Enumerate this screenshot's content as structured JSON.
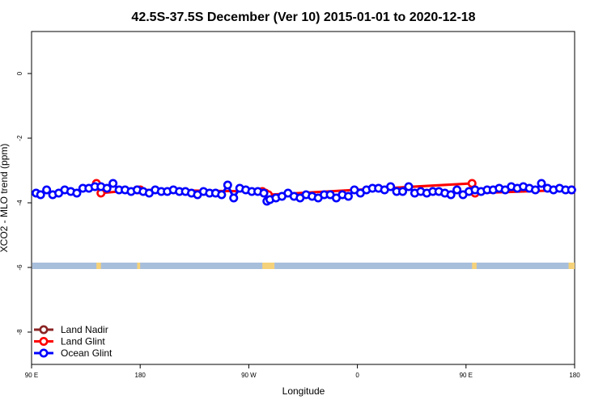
{
  "chart_data": {
    "type": "line",
    "title": "42.5S-37.5S December (Ver 10)   2015-01-01 to 2020-12-18",
    "xlabel": "Longitude",
    "ylabel": "XCO2 - MLO trend (ppm)",
    "xlim": [
      -90,
      270
    ],
    "ylim": [
      -9,
      1.3
    ],
    "x_ticks": [
      {
        "value": -90,
        "label": "90 E"
      },
      {
        "value": -18,
        "label": "180"
      },
      {
        "value": 54,
        "label": "90 W"
      },
      {
        "value": 126,
        "label": "0"
      },
      {
        "value": 198,
        "label": "90 E"
      },
      {
        "value": 270,
        "label": "180"
      }
    ],
    "y_ticks": [
      0,
      -2,
      -4,
      -6,
      -8
    ],
    "grid": false,
    "legend_position": "bottom-left",
    "land_mask": {
      "y_range": [
        -5.85,
        -6.05
      ],
      "ocean_color": "#a8bfdc",
      "land_color": "#f5d27a",
      "land_segments": [
        [
          -47,
          -44
        ],
        [
          -20,
          -18
        ],
        [
          63,
          71
        ],
        [
          202,
          205
        ],
        [
          266,
          270
        ]
      ]
    },
    "series": [
      {
        "name": "Land Nadir",
        "color": "#8b2323",
        "x": [],
        "y": []
      },
      {
        "name": "Land Glint",
        "color": "#ff0000",
        "x": [
          -47,
          -44,
          -20,
          -18,
          63,
          65,
          67,
          202,
          204,
          268
        ],
        "y": [
          -3.4,
          -3.7,
          -3.6,
          -3.6,
          -3.65,
          -3.7,
          -3.75,
          -3.4,
          -3.7,
          -3.6
        ]
      },
      {
        "name": "Ocean Glint",
        "color": "#0000ff",
        "x": [
          -87,
          -84,
          -80,
          -76,
          -72,
          -68,
          -64,
          -60,
          -56,
          -52,
          -48,
          -44,
          -40,
          -36,
          -32,
          -28,
          -24,
          -20,
          -16,
          -12,
          -8,
          -4,
          0,
          4,
          8,
          12,
          16,
          20,
          24,
          28,
          32,
          36,
          40,
          44,
          48,
          52,
          56,
          60,
          64,
          66,
          68,
          72,
          76,
          80,
          84,
          88,
          92,
          96,
          100,
          104,
          108,
          112,
          116,
          120,
          124,
          128,
          132,
          136,
          140,
          144,
          148,
          152,
          156,
          160,
          164,
          168,
          172,
          176,
          180,
          184,
          188,
          192,
          196,
          200,
          204,
          208,
          212,
          216,
          220,
          224,
          228,
          232,
          236,
          240,
          244,
          248,
          252,
          256,
          260,
          264,
          268
        ],
        "y": [
          -3.7,
          -3.75,
          -3.6,
          -3.75,
          -3.7,
          -3.6,
          -3.65,
          -3.7,
          -3.55,
          -3.55,
          -3.5,
          -3.5,
          -3.55,
          -3.4,
          -3.6,
          -3.6,
          -3.65,
          -3.6,
          -3.65,
          -3.7,
          -3.6,
          -3.65,
          -3.65,
          -3.6,
          -3.65,
          -3.65,
          -3.7,
          -3.75,
          -3.65,
          -3.7,
          -3.7,
          -3.75,
          -3.45,
          -3.85,
          -3.55,
          -3.6,
          -3.65,
          -3.65,
          -3.7,
          -3.95,
          -3.9,
          -3.85,
          -3.8,
          -3.7,
          -3.8,
          -3.85,
          -3.75,
          -3.8,
          -3.85,
          -3.75,
          -3.75,
          -3.85,
          -3.75,
          -3.8,
          -3.6,
          -3.7,
          -3.6,
          -3.55,
          -3.55,
          -3.6,
          -3.5,
          -3.65,
          -3.65,
          -3.5,
          -3.7,
          -3.65,
          -3.7,
          -3.65,
          -3.65,
          -3.7,
          -3.75,
          -3.6,
          -3.75,
          -3.65,
          -3.6,
          -3.65,
          -3.6,
          -3.6,
          -3.55,
          -3.6,
          -3.5,
          -3.55,
          -3.5,
          -3.55,
          -3.6,
          -3.4,
          -3.55,
          -3.6,
          -3.55,
          -3.6,
          -3.6
        ]
      }
    ]
  }
}
